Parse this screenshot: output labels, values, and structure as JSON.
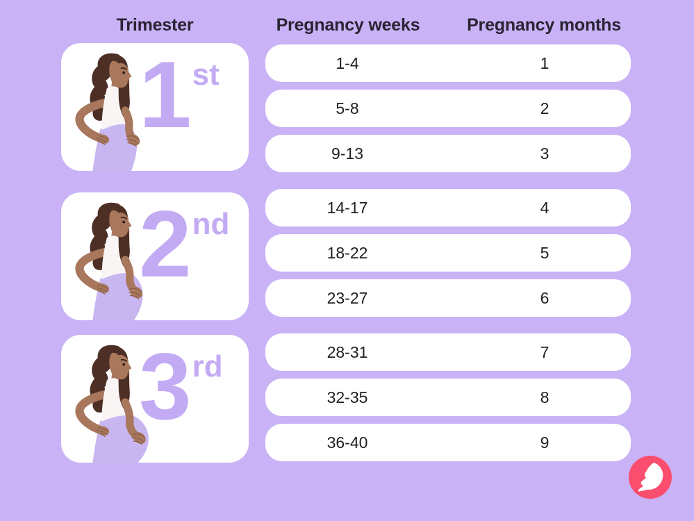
{
  "header": {
    "columns": [
      {
        "label": "Trimester"
      },
      {
        "label": "Pregnancy weeks"
      },
      {
        "label": "Pregnancy months"
      }
    ]
  },
  "trimesters": [
    {
      "digit": "1",
      "suffix": "st",
      "illustration": "pregnant-woman-small-belly"
    },
    {
      "digit": "2",
      "suffix": "nd",
      "illustration": "pregnant-woman-medium-belly"
    },
    {
      "digit": "3",
      "suffix": "rd",
      "illustration": "pregnant-woman-large-belly"
    }
  ],
  "groups": [
    {
      "trimester": "1st",
      "rows": [
        {
          "weeks": "1-4",
          "months": "1"
        },
        {
          "weeks": "5-8",
          "months": "2"
        },
        {
          "weeks": "9-13",
          "months": "3"
        }
      ]
    },
    {
      "trimester": "2nd",
      "rows": [
        {
          "weeks": "14-17",
          "months": "4"
        },
        {
          "weeks": "18-22",
          "months": "5"
        },
        {
          "weeks": "23-27",
          "months": "6"
        }
      ]
    },
    {
      "trimester": "3rd",
      "rows": [
        {
          "weeks": "28-31",
          "months": "7"
        },
        {
          "weeks": "32-35",
          "months": "8"
        },
        {
          "weeks": "36-40",
          "months": "9"
        }
      ]
    }
  ],
  "logo": {
    "icon": "flo-feather-logo"
  },
  "colors": {
    "background": "#c9b3f6",
    "card": "#ffffff",
    "ordinal_purple": "#c3abf4",
    "header_text": "#2a2333",
    "row_text": "#201d23",
    "logo_pink": "#fb4d6d"
  },
  "chart_data": {
    "type": "table",
    "columns": [
      "Trimester",
      "Pregnancy weeks",
      "Pregnancy months"
    ],
    "rows": [
      [
        "1st",
        "1-4",
        "1"
      ],
      [
        "1st",
        "5-8",
        "2"
      ],
      [
        "1st",
        "9-13",
        "3"
      ],
      [
        "2nd",
        "14-17",
        "4"
      ],
      [
        "2nd",
        "18-22",
        "5"
      ],
      [
        "2nd",
        "23-27",
        "6"
      ],
      [
        "3rd",
        "28-31",
        "7"
      ],
      [
        "3rd",
        "32-35",
        "8"
      ],
      [
        "3rd",
        "36-40",
        "9"
      ]
    ]
  }
}
